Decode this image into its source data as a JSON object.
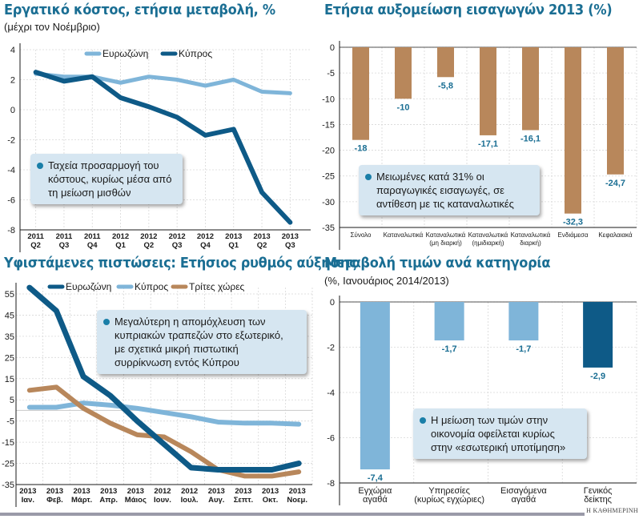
{
  "colors": {
    "title": "#1a6e93",
    "dark_blue": "#0e5a87",
    "light_blue": "#7fb5d9",
    "brown": "#b8875b",
    "label_blue": "#1a6e93",
    "note_bg": "#d6e6f1"
  },
  "footer": {
    "source": "Η ΚΑΘΗΜΕΡΙΝΗ"
  },
  "chart_data": [
    {
      "id": "labor-cost",
      "type": "line",
      "title": "Εργατικό κόστος, ετήσια μεταβολή, %",
      "subtitle": "(μέχρι τον Νοέμβριο)",
      "x": [
        "2011 Q2",
        "2011 Q3",
        "2011 Q4",
        "2012 Q1",
        "2012 Q2",
        "2012 Q3",
        "2012 Q4",
        "2013 Q1",
        "2013 Q2",
        "2013 Q3"
      ],
      "x_labels": [
        [
          "2011",
          "Q2"
        ],
        [
          "2011",
          "Q3"
        ],
        [
          "2011",
          "Q4"
        ],
        [
          "2012",
          "Q1"
        ],
        [
          "2012",
          "Q2"
        ],
        [
          "2012",
          "Q3"
        ],
        [
          "2012",
          "Q4"
        ],
        [
          "2013",
          "Q1"
        ],
        [
          "2013",
          "Q2"
        ],
        [
          "2013",
          "Q3"
        ]
      ],
      "yticks": [
        4,
        2,
        0,
        -2,
        -4,
        -6,
        -8
      ],
      "ylim": [
        -8,
        4
      ],
      "grid": true,
      "legend_position": "top-right",
      "series": [
        {
          "name": "Ευρωζώνη",
          "color": "#7fb5d9",
          "values": [
            2.4,
            2.2,
            2.2,
            1.8,
            2.2,
            2.0,
            1.6,
            2.0,
            1.2,
            1.1
          ]
        },
        {
          "name": "Κύπρος",
          "color": "#0e5a87",
          "values": [
            2.5,
            1.9,
            2.2,
            0.8,
            0.2,
            -0.5,
            -1.7,
            -1.3,
            -5.5,
            -7.5
          ]
        }
      ],
      "note": [
        "Ταχεία προσαρμογή του",
        "κόστους, κυρίως μέσα από",
        "τη μείωση μισθών"
      ]
    },
    {
      "id": "imports",
      "type": "bar",
      "title": "Ετήσια αυξομείωση εισαγωγών 2013 (%)",
      "categories": [
        [
          "Σύνολο"
        ],
        [
          "Καταναλωτικά"
        ],
        [
          "Καταναλωτικά",
          "(μη διαρκή)"
        ],
        [
          "Καταναλωτικά",
          "(ημιδιαρκή)"
        ],
        [
          "Καταναλωτικά",
          "διαρκή)"
        ],
        [
          "Ενδιάμεσα"
        ],
        [
          "Κεφαλαιακά"
        ]
      ],
      "values": [
        -18,
        -10,
        -5.8,
        -17.1,
        -16.1,
        -32.3,
        -24.7
      ],
      "value_labels": [
        "-18",
        "-10",
        "-5,8",
        "-17,1",
        "-16,1",
        "-32,3",
        "-24,7"
      ],
      "yticks": [
        0,
        -5,
        -10,
        -15,
        -20,
        -25,
        -30,
        -35
      ],
      "ylim": [
        -35,
        0
      ],
      "bar_color": "#b8875b",
      "grid": true,
      "note": [
        "Μειωμένες κατά 31% οι",
        "παραγωγικές εισαγωγές, σε",
        "αντίθεση με τις καταναλωτικές"
      ]
    },
    {
      "id": "credit",
      "type": "line",
      "title": "Υφιστάμενες πιστώσεις: Ετήσιος ρυθμός αύξησης",
      "x_labels": [
        [
          "2013",
          "Ιαν."
        ],
        [
          "2013",
          "Φεβ."
        ],
        [
          "2013",
          "Μάρτ."
        ],
        [
          "2013",
          "Απρ."
        ],
        [
          "2013",
          "Μάιος"
        ],
        [
          "2012",
          "Ιουν."
        ],
        [
          "2012",
          "Ιουλ."
        ],
        [
          "2013",
          "Αυγ."
        ],
        [
          "2013",
          "Σεπτ."
        ],
        [
          "2013",
          "Οκτ."
        ],
        [
          "2013",
          "Νοεμ."
        ]
      ],
      "yticks": [
        55,
        45,
        35,
        25,
        15,
        5,
        -5,
        -15,
        -25,
        -35
      ],
      "ylim": [
        -35,
        60
      ],
      "grid": true,
      "legend_position": "top",
      "series": [
        {
          "name": "Ευρωζώνη",
          "color": "#0e5a87",
          "values": [
            58,
            47,
            16,
            7,
            -5,
            -16,
            -27,
            -28,
            -28,
            -28,
            -25
          ]
        },
        {
          "name": "Κύπρος",
          "color": "#7fb5d9",
          "values": [
            1.5,
            1.5,
            3.5,
            2.5,
            1,
            -1,
            -3,
            -5.5,
            -6,
            -6,
            -6.5
          ]
        },
        {
          "name": "Τρίτες χώρες",
          "color": "#b8875b",
          "values": [
            9.5,
            11,
            1,
            -6,
            -11.5,
            -12.5,
            -19.5,
            -28,
            -31,
            -31,
            -29
          ]
        }
      ],
      "note": [
        "Μεγαλύτερη η απομόχλευση των",
        "κυπριακών τραπεζών στο εξωτερικό,",
        "με σχετικά μικρή πιστωτική",
        "συρρίκνωση εντός Κύπρου"
      ]
    },
    {
      "id": "prices",
      "type": "bar",
      "title": "Μεταβολή τιμών ανά κατηγορία",
      "subtitle": "(%, Ιανουάριος 2014/2013)",
      "categories": [
        [
          "Εγχώρια",
          "αγαθά"
        ],
        [
          "Υπηρεσίες",
          "(κυρίως εγχώριες)"
        ],
        [
          "Εισαγόμενα",
          "αγαθά"
        ],
        [
          "Γενικός",
          "δείκτης"
        ]
      ],
      "values": [
        -7.4,
        -1.7,
        -1.7,
        -2.9
      ],
      "value_labels": [
        "-7,4",
        "-1,7",
        "-1,7",
        "-2,9"
      ],
      "bar_colors": [
        "#7fb5d9",
        "#7fb5d9",
        "#7fb5d9",
        "#0e5a87"
      ],
      "yticks": [
        0,
        -2,
        -4,
        -6,
        -8
      ],
      "ylim": [
        -8,
        0
      ],
      "grid": true,
      "note": [
        "Η μείωση των τιμών στην",
        "οικονομία οφείλεται κυρίως",
        "στην «εσωτερική υποτίμηση»"
      ]
    }
  ]
}
